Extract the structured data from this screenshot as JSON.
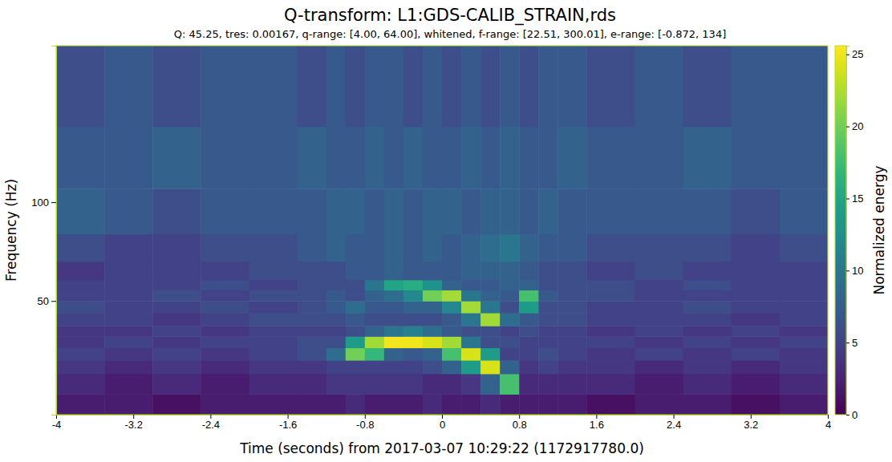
{
  "chart_data": {
    "type": "heatmap",
    "title": "Q-transform: L1:GDS-CALIB_STRAIN,rds",
    "subtitle": "Q: 45.25, tres: 0.00167, q-range: [4.00, 64.00], whitened, f-range: [22.51, 300.01], e-range: [-0.872, 134]",
    "x_label": "Time (seconds) from 2017-03-07 10:29:22 (1172917780.0)",
    "y_label": "Frequency (Hz)",
    "log": "y",
    "xlim": [
      -4,
      4
    ],
    "xticks": [
      -4,
      -3.2,
      -2.4,
      -1.6,
      -0.8,
      0,
      0.8,
      1.6,
      2.4,
      3.2,
      4
    ],
    "ylim": [
      22.51,
      300.01
    ],
    "yticks": [
      50,
      100
    ],
    "x_edges": [
      -4,
      -3.5,
      -3,
      -2.5,
      -2,
      -1.5,
      -1.2,
      -1.0,
      -0.8,
      -0.6,
      -0.4,
      -0.2,
      0,
      0.2,
      0.4,
      0.6,
      0.8,
      1.0,
      1.2,
      1.5,
      2,
      2.5,
      3,
      3.5,
      4
    ],
    "y_edges": [
      22.51,
      26,
      30,
      33,
      36,
      39,
      42,
      46,
      50,
      54,
      58,
      66,
      80,
      110,
      170,
      300.01
    ],
    "z": [
      [
        2,
        2,
        1,
        2,
        2,
        2,
        2,
        3,
        2,
        2,
        2,
        3,
        2,
        2,
        3,
        2,
        2,
        2,
        2,
        1,
        2,
        2,
        1,
        2
      ],
      [
        3,
        2,
        3,
        2,
        3,
        3,
        4,
        4,
        4,
        4,
        4,
        3,
        3,
        4,
        8,
        18,
        3,
        3,
        3,
        3,
        2,
        3,
        2,
        3
      ],
      [
        4,
        3,
        4,
        3,
        4,
        4,
        5,
        5,
        5,
        5,
        5,
        6,
        8,
        14,
        24,
        8,
        4,
        5,
        4,
        4,
        3,
        4,
        3,
        4
      ],
      [
        5,
        4,
        5,
        4,
        5,
        6,
        9,
        20,
        17,
        8,
        7,
        8,
        18,
        24,
        14,
        5,
        5,
        6,
        5,
        4,
        5,
        4,
        5,
        4
      ],
      [
        4,
        5,
        4,
        5,
        5,
        6,
        6,
        14,
        22,
        25,
        25,
        24,
        22,
        10,
        6,
        6,
        5,
        5,
        5,
        5,
        4,
        5,
        4,
        5
      ],
      [
        4,
        4,
        5,
        4,
        5,
        5,
        5,
        6,
        8,
        10,
        11,
        9,
        7,
        6,
        6,
        5,
        6,
        5,
        5,
        4,
        5,
        4,
        5,
        4
      ],
      [
        5,
        5,
        4,
        5,
        6,
        6,
        6,
        7,
        6,
        6,
        6,
        6,
        7,
        10,
        22,
        9,
        7,
        6,
        6,
        5,
        5,
        5,
        4,
        5
      ],
      [
        6,
        5,
        5,
        6,
        5,
        6,
        7,
        9,
        7,
        7,
        8,
        8,
        12,
        22,
        10,
        6,
        14,
        6,
        6,
        5,
        5,
        6,
        5,
        5
      ],
      [
        5,
        5,
        6,
        5,
        6,
        6,
        7,
        6,
        8,
        9,
        12,
        20,
        22,
        10,
        8,
        7,
        18,
        7,
        6,
        6,
        5,
        5,
        5,
        5
      ],
      [
        5,
        5,
        5,
        6,
        5,
        6,
        6,
        6,
        10,
        15,
        16,
        13,
        8,
        7,
        7,
        8,
        8,
        6,
        6,
        6,
        5,
        6,
        5,
        5
      ],
      [
        4,
        5,
        5,
        5,
        6,
        6,
        6,
        7,
        7,
        8,
        7,
        7,
        7,
        8,
        8,
        8,
        7,
        6,
        6,
        5,
        6,
        5,
        5,
        5
      ],
      [
        6,
        5,
        5,
        6,
        6,
        7,
        8,
        7,
        7,
        8,
        7,
        8,
        7,
        8,
        9,
        10,
        8,
        7,
        7,
        6,
        6,
        6,
        5,
        6
      ],
      [
        8,
        7,
        6,
        7,
        7,
        7,
        8,
        8,
        7,
        8,
        7,
        8,
        8,
        7,
        8,
        8,
        7,
        8,
        7,
        7,
        7,
        7,
        6,
        7
      ],
      [
        7,
        7,
        8,
        7,
        7,
        8,
        7,
        7,
        8,
        7,
        8,
        7,
        7,
        8,
        7,
        8,
        7,
        7,
        8,
        7,
        7,
        8,
        7,
        7
      ],
      [
        6,
        7,
        6,
        7,
        7,
        6,
        7,
        6,
        7,
        7,
        6,
        7,
        6,
        7,
        6,
        7,
        6,
        7,
        7,
        6,
        7,
        6,
        7,
        7
      ]
    ],
    "colorbar_label": "Normalized energy",
    "colorbar_range": [
      0,
      25.6
    ],
    "colorbar_ticks": [
      0,
      5,
      10,
      15,
      20,
      25
    ]
  }
}
